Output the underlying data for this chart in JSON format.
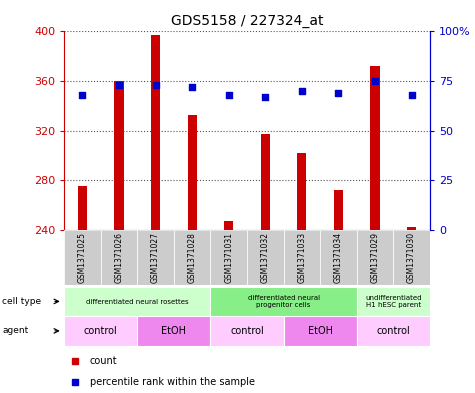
{
  "title": "GDS5158 / 227324_at",
  "samples": [
    "GSM1371025",
    "GSM1371026",
    "GSM1371027",
    "GSM1371028",
    "GSM1371031",
    "GSM1371032",
    "GSM1371033",
    "GSM1371034",
    "GSM1371029",
    "GSM1371030"
  ],
  "counts": [
    275,
    360,
    397,
    333,
    247,
    317,
    302,
    272,
    372,
    242
  ],
  "percentiles": [
    68,
    73,
    73,
    72,
    68,
    67,
    70,
    69,
    75,
    68
  ],
  "ylim_left": [
    240,
    400
  ],
  "ylim_right": [
    0,
    100
  ],
  "yticks_left": [
    240,
    280,
    320,
    360,
    400
  ],
  "yticks_right": [
    0,
    25,
    50,
    75,
    100
  ],
  "cell_type_groups": [
    {
      "label": "differentiated neural rosettes",
      "start": 0,
      "end": 4,
      "color": "#ccffcc"
    },
    {
      "label": "differentiated neural\nprogenitor cells",
      "start": 4,
      "end": 8,
      "color": "#88ee88"
    },
    {
      "label": "undifferentiated\nH1 hESC parent",
      "start": 8,
      "end": 10,
      "color": "#ccffcc"
    }
  ],
  "agent_groups": [
    {
      "label": "control",
      "start": 0,
      "end": 2,
      "color": "#ffccff"
    },
    {
      "label": "EtOH",
      "start": 2,
      "end": 4,
      "color": "#ee88ee"
    },
    {
      "label": "control",
      "start": 4,
      "end": 6,
      "color": "#ffccff"
    },
    {
      "label": "EtOH",
      "start": 6,
      "end": 8,
      "color": "#ee88ee"
    },
    {
      "label": "control",
      "start": 8,
      "end": 10,
      "color": "#ffccff"
    }
  ],
  "bar_color": "#cc0000",
  "dot_color": "#0000cc",
  "grid_color": "#555555",
  "tick_label_color_left": "#cc0000",
  "tick_label_color_right": "#0000cc",
  "bg_sample_color": "#cccccc",
  "legend_count_color": "#cc0000",
  "legend_pct_color": "#0000cc",
  "bar_width": 0.25
}
